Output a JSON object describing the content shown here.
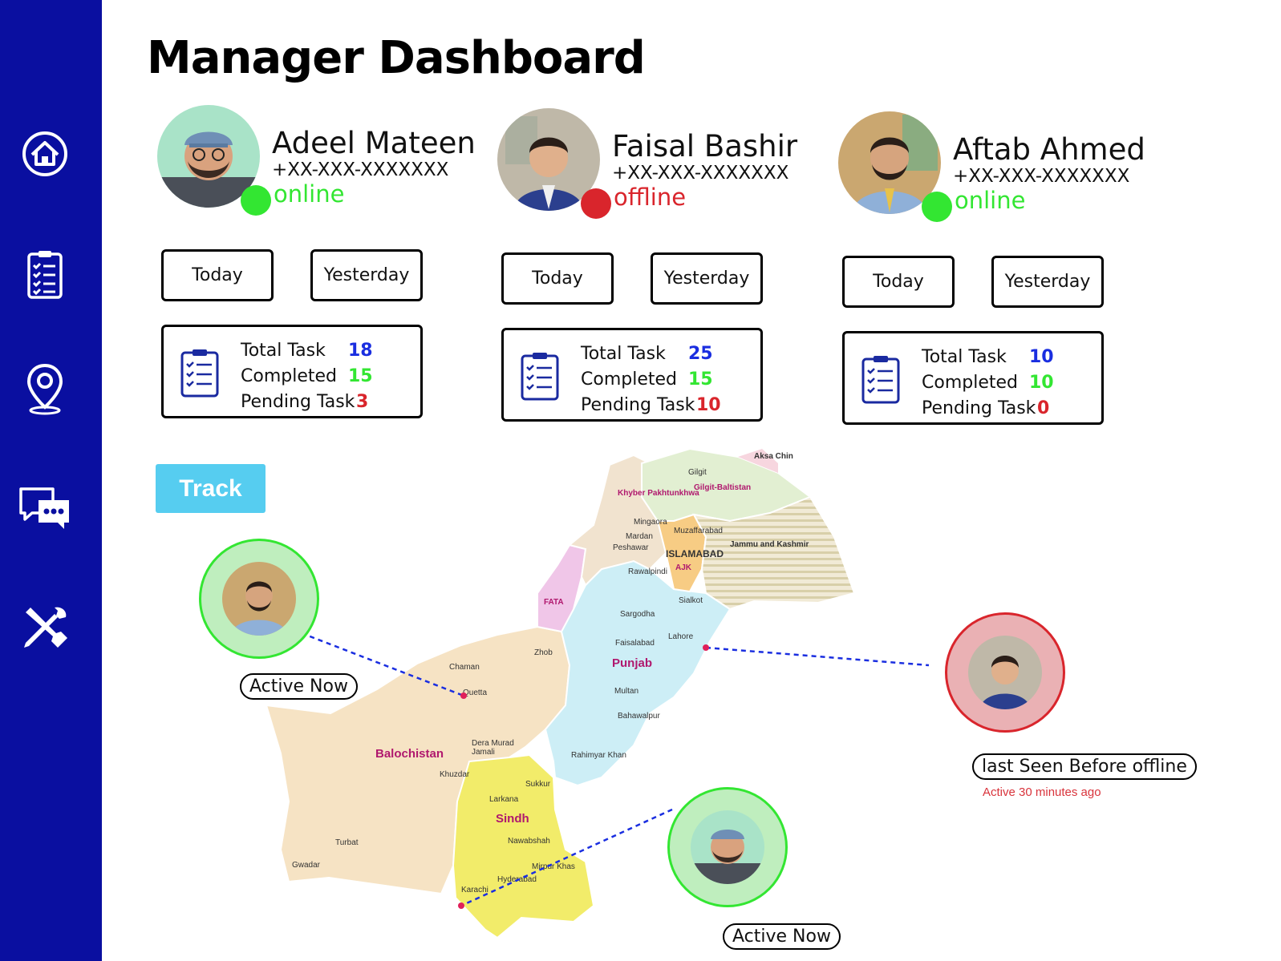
{
  "page": {
    "title": "Manager Dashboard"
  },
  "sidebar": {
    "items": [
      {
        "icon": "home-icon"
      },
      {
        "icon": "clipboard-icon"
      },
      {
        "icon": "location-pin-icon"
      },
      {
        "icon": "chat-icon"
      },
      {
        "icon": "tools-icon"
      }
    ]
  },
  "colors": {
    "sidebar": "#0a0fa0",
    "online": "#33e632",
    "offline": "#d9252c",
    "total": "#1a2ee0",
    "completed": "#33e632",
    "pending": "#d9252c",
    "track": "#56cdf0"
  },
  "managers": [
    {
      "name": "Adeel Mateen",
      "phone": "+XX-XXX-XXXXXXX",
      "status": "online",
      "today_label": "Today",
      "yesterday_label": "Yesterday",
      "stats": {
        "total_label": "Total Task",
        "total": "18",
        "completed_label": "Completed",
        "completed": "15",
        "pending_label": "Pending Task",
        "pending": "3"
      }
    },
    {
      "name": "Faisal Bashir",
      "phone": "+XX-XXX-XXXXXXX",
      "status": "offline",
      "today_label": "Today",
      "yesterday_label": "Yesterday",
      "stats": {
        "total_label": "Total Task",
        "total": "25",
        "completed_label": "Completed",
        "completed": "15",
        "pending_label": "Pending Task",
        "pending": "10"
      }
    },
    {
      "name": "Aftab Ahmed",
      "phone": "+XX-XXX-XXXXXXX",
      "status": "online",
      "today_label": "Today",
      "yesterday_label": "Yesterday",
      "stats": {
        "total_label": "Total Task",
        "total": "10",
        "completed_label": "Completed",
        "completed": "10",
        "pending_label": "Pending Task",
        "pending": "0"
      }
    }
  ],
  "track": {
    "label": "Track"
  },
  "map": {
    "regions": [
      "Balochistan",
      "Sindh",
      "Punjab",
      "Khyber Pakhtunkhwa",
      "Gilgit-Baltistan",
      "Jammu and Kashmir",
      "FATA",
      "AJK",
      "Aksa Chin"
    ],
    "cities": [
      "Gilgit",
      "Mingaora",
      "Mardan",
      "Peshawar",
      "Muzaffarabad",
      "ISLAMABAD",
      "Rawalpindi",
      "Sialkot",
      "Sargodha",
      "Lahore",
      "Faisalabad",
      "Zhob",
      "Chaman",
      "Quetta",
      "Multan",
      "Bahawalpur",
      "Dera Murad Jamali",
      "Rahimyar Khan",
      "Khuzdar",
      "Sukkur",
      "Larkana",
      "Nawabshah",
      "Turbat",
      "Gwadar",
      "Mirpur Khas",
      "Hyderabad",
      "Karachi"
    ]
  },
  "trackers": [
    {
      "label": "Active Now",
      "note": ""
    },
    {
      "label": "last Seen Before offline",
      "note": "Active 30 minutes ago"
    },
    {
      "label": "Active Now",
      "note": ""
    }
  ]
}
